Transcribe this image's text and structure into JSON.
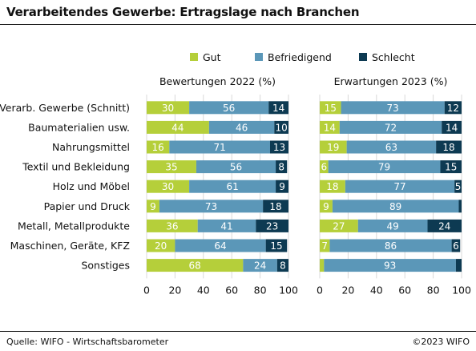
{
  "title": "Verarbeitendes Gewerbe: Ertragslage nach Branchen",
  "footer": {
    "source": "Quelle: WIFO - Wirtschaftsbarometer",
    "copyright": "©2023 WIFO"
  },
  "colors": {
    "gut": "#b5cf3a",
    "befriedigend": "#5b97b8",
    "schlecht": "#0d3a52",
    "grid": "#d9d9d9"
  },
  "chart_data": {
    "type": "bar",
    "orientation": "horizontal",
    "stacked": true,
    "legend": {
      "position": "top",
      "entries": [
        "Gut",
        "Befriedigend",
        "Schlecht"
      ]
    },
    "categories": [
      "Verarb. Gewerbe (Schnitt)",
      "Baumaterialien usw.",
      "Nahrungsmittel",
      "Textil und Bekleidung",
      "Holz und Möbel",
      "Papier und Druck",
      "Metall, Metallprodukte",
      "Maschinen, Geräte, KFZ",
      "Sonstiges"
    ],
    "panels": [
      {
        "subtitle": "Bewertungen 2022 (%)",
        "xlim": [
          0,
          100
        ],
        "xticks": [
          "0",
          "20",
          "40",
          "60",
          "80",
          "100"
        ],
        "series": [
          {
            "name": "Gut",
            "values": [
              30,
              44,
              16,
              35,
              30,
              9,
              36,
              20,
              68
            ]
          },
          {
            "name": "Befriedigend",
            "values": [
              56,
              46,
              71,
              56,
              61,
              73,
              41,
              64,
              24
            ]
          },
          {
            "name": "Schlecht",
            "values": [
              14,
              10,
              13,
              8,
              9,
              18,
              23,
              15,
              8
            ]
          }
        ]
      },
      {
        "subtitle": "Erwartungen 2023 (%)",
        "xlim": [
          0,
          100
        ],
        "xticks": [
          "0",
          "20",
          "40",
          "60",
          "80",
          "100"
        ],
        "series": [
          {
            "name": "Gut",
            "values": [
              15,
              14,
              19,
              6,
              18,
              9,
              27,
              7,
              3
            ]
          },
          {
            "name": "Befriedigend",
            "values": [
              73,
              72,
              63,
              79,
              77,
              89,
              49,
              86,
              93
            ]
          },
          {
            "name": "Schlecht",
            "values": [
              12,
              14,
              18,
              15,
              5,
              2,
              24,
              6,
              4
            ]
          }
        ],
        "label_values": [
          [
            "15",
            "14",
            "19",
            "6",
            "18",
            "9",
            "27",
            "7",
            ""
          ],
          [
            "73",
            "72",
            "63",
            "79",
            "77",
            "89",
            "49",
            "86",
            "93"
          ],
          [
            "12",
            "14",
            "18",
            "15",
            "5",
            "",
            "24",
            "6",
            ""
          ]
        ]
      }
    ]
  }
}
